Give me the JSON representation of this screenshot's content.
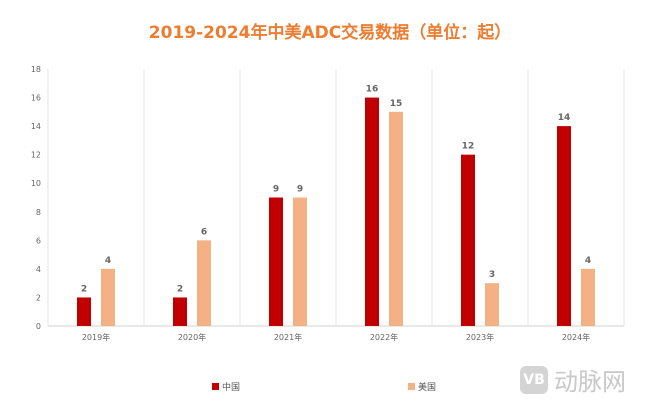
{
  "chart_data": {
    "type": "bar",
    "title": "2019-2024年中美ADC交易数据（单位：起）",
    "categories": [
      "2019年",
      "2020年",
      "2021年",
      "2022年",
      "2023年",
      "2024年"
    ],
    "series": [
      {
        "name": "中国",
        "color": "#C00000",
        "values": [
          2,
          2,
          9,
          16,
          12,
          14
        ]
      },
      {
        "name": "美国",
        "color": "#F4B183",
        "values": [
          4,
          6,
          9,
          15,
          3,
          4
        ]
      }
    ],
    "yticks": [
      0,
      2,
      4,
      6,
      8,
      10,
      12,
      14,
      16,
      18
    ],
    "ylim": [
      0,
      18
    ],
    "xlabel": "",
    "ylabel": "",
    "legend": "bottom",
    "grid": "vertical separators"
  },
  "watermark": {
    "logo": "VB",
    "text": "动脉网"
  }
}
